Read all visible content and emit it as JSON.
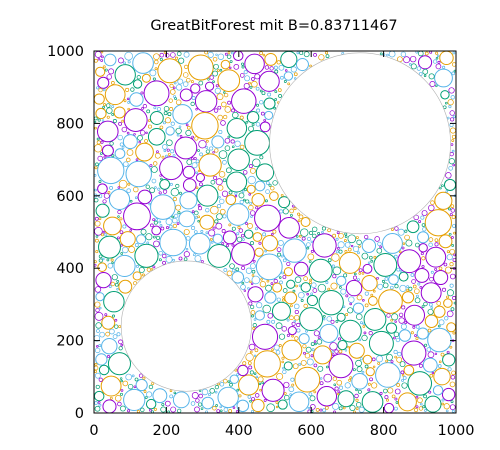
{
  "chart_data": {
    "type": "scatter",
    "title": "GreatBitForest mit B=0.83711467",
    "xlabel": "",
    "ylabel": "",
    "xlim": [
      0,
      1000
    ],
    "ylim": [
      0,
      1000
    ],
    "x_ticks": [
      "0",
      "200",
      "400",
      "600",
      "800",
      "1000"
    ],
    "y_ticks": [
      "0",
      "200",
      "400",
      "600",
      "800",
      "1000"
    ],
    "grid": false,
    "legend": "none",
    "colors": [
      "#9400d3",
      "#e69f00",
      "#009e73",
      "#56b4e9"
    ],
    "large_empty_circles": [
      {
        "cx": 255,
        "cy": 240,
        "r": 180
      },
      {
        "cx": 735,
        "cy": 745,
        "r": 250
      }
    ]
  }
}
